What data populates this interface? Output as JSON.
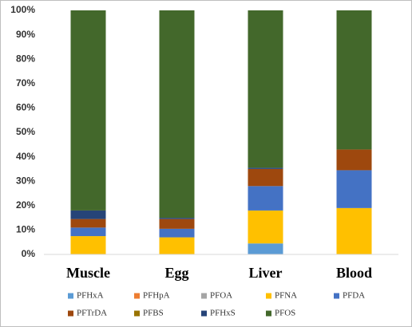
{
  "chart_data": {
    "type": "stacked-bar",
    "categories": [
      "Muscle",
      "Egg",
      "Liver",
      "Blood"
    ],
    "series": [
      {
        "name": "PFHxA",
        "color": "#5b9bd5",
        "values": [
          0,
          0,
          4.5,
          0
        ]
      },
      {
        "name": "PFHpA",
        "color": "#ed7d31",
        "values": [
          0,
          0,
          0,
          0
        ]
      },
      {
        "name": "PFOA",
        "color": "#a5a5a5",
        "values": [
          0,
          0,
          0,
          0
        ]
      },
      {
        "name": "PFNA",
        "color": "#ffc000",
        "values": [
          7.5,
          7,
          13.5,
          19
        ]
      },
      {
        "name": "PFDA",
        "color": "#4472c4",
        "values": [
          3.5,
          3.5,
          10,
          15.5
        ]
      },
      {
        "name": "PFTrDA",
        "color": "#9e480e",
        "values": [
          3.5,
          4,
          7,
          8.5
        ]
      },
      {
        "name": "PFBS",
        "color": "#997300",
        "values": [
          0,
          0,
          0,
          0
        ]
      },
      {
        "name": "PFHxS",
        "color": "#264478",
        "values": [
          3.5,
          0.5,
          0.5,
          0
        ]
      },
      {
        "name": "PFOS",
        "color": "#43682b",
        "values": [
          82,
          85,
          64.5,
          57
        ]
      }
    ],
    "ylim": [
      0,
      100
    ],
    "yticks": [
      {
        "value": 0,
        "label": "0%"
      },
      {
        "value": 10,
        "label": "10%"
      },
      {
        "value": 20,
        "label": "20%"
      },
      {
        "value": 30,
        "label": "30%"
      },
      {
        "value": 40,
        "label": "40%"
      },
      {
        "value": 50,
        "label": "50%"
      },
      {
        "value": 60,
        "label": "60%"
      },
      {
        "value": 70,
        "label": "70%"
      },
      {
        "value": 80,
        "label": "80%"
      },
      {
        "value": 90,
        "label": "90%"
      },
      {
        "value": 100,
        "label": "100%"
      }
    ],
    "grid": false,
    "legend": "bottom"
  }
}
